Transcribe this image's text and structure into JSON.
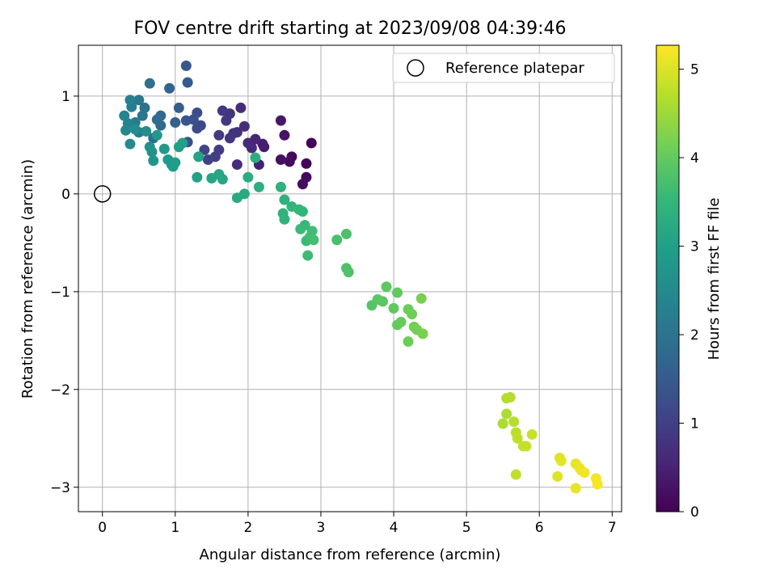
{
  "chart_data": {
    "type": "scatter",
    "title": "FOV centre drift starting at 2023/09/08 04:39:46",
    "xlabel": "Angular distance from reference (arcmin)",
    "ylabel": "Rotation from reference (arcmin)",
    "xlim": [
      -0.33,
      7.13
    ],
    "ylim": [
      -3.25,
      1.52
    ],
    "xticks": [
      0,
      1,
      2,
      3,
      4,
      5,
      6,
      7
    ],
    "xtick_labels": [
      "0",
      "1",
      "2",
      "3",
      "4",
      "5",
      "6",
      "7"
    ],
    "yticks": [
      1,
      0,
      -1,
      -2,
      -3
    ],
    "ytick_labels": [
      "1",
      "0",
      "−1",
      "−2",
      "−3"
    ],
    "grid": true,
    "legend": {
      "position": "top-right",
      "entries": [
        "Reference platepar"
      ]
    },
    "reference_point": {
      "x": 0,
      "y": 0,
      "label": "Reference platepar",
      "marker": "open-circle"
    },
    "colorbar": {
      "label": "Hours from first FF file",
      "min": 0,
      "max": 5.27,
      "ticks": [
        0,
        1,
        2,
        3,
        4,
        5
      ],
      "tick_labels": [
        "0",
        "1",
        "2",
        "3",
        "4",
        "5"
      ],
      "colormap": "viridis",
      "colors": [
        "#440154",
        "#482878",
        "#3e4989",
        "#31688e",
        "#26828e",
        "#1f9e89",
        "#35b779",
        "#6ece58",
        "#b5de2b",
        "#fde725"
      ]
    },
    "points": [
      [
        2.87,
        0.52,
        0.05
      ],
      [
        2.8,
        0.31,
        0.08
      ],
      [
        2.8,
        0.17,
        0.1
      ],
      [
        2.6,
        0.38,
        0.12
      ],
      [
        2.57,
        0.33,
        0.15
      ],
      [
        2.75,
        0.1,
        0.18
      ],
      [
        2.45,
        0.35,
        0.22
      ],
      [
        2.5,
        0.6,
        0.3
      ],
      [
        2.45,
        0.75,
        0.35
      ],
      [
        2.22,
        0.48,
        0.4
      ],
      [
        2.2,
        0.51,
        0.45
      ],
      [
        2.15,
        0.3,
        0.5
      ],
      [
        2.1,
        0.56,
        0.55
      ],
      [
        2.0,
        0.52,
        0.6
      ],
      [
        2.05,
        0.47,
        0.62
      ],
      [
        1.9,
        0.88,
        0.65
      ],
      [
        1.85,
        0.3,
        0.68
      ],
      [
        1.95,
        0.69,
        0.7
      ],
      [
        1.85,
        0.63,
        0.75
      ],
      [
        1.8,
        0.62,
        0.78
      ],
      [
        1.75,
        0.82,
        0.8
      ],
      [
        1.75,
        0.57,
        0.82
      ],
      [
        1.7,
        0.75,
        0.85
      ],
      [
        1.65,
        0.85,
        0.88
      ],
      [
        1.6,
        0.6,
        0.9
      ],
      [
        1.6,
        0.45,
        0.95
      ],
      [
        1.55,
        0.38,
        1.0
      ],
      [
        1.45,
        0.35,
        1.05
      ],
      [
        1.4,
        0.45,
        1.1
      ],
      [
        1.35,
        0.7,
        1.15
      ],
      [
        1.3,
        0.67,
        1.2
      ],
      [
        1.3,
        0.83,
        1.25
      ],
      [
        1.25,
        0.76,
        1.3
      ],
      [
        1.17,
        0.53,
        1.35
      ],
      [
        1.15,
        0.75,
        1.4
      ],
      [
        1.15,
        1.31,
        1.45
      ],
      [
        1.17,
        1.14,
        1.5
      ],
      [
        1.05,
        0.88,
        1.55
      ],
      [
        1.0,
        0.73,
        1.6
      ],
      [
        0.92,
        1.08,
        1.7
      ],
      [
        0.8,
        0.8,
        1.75
      ],
      [
        0.8,
        0.7,
        1.8
      ],
      [
        0.75,
        0.76,
        1.85
      ],
      [
        0.7,
        0.57,
        1.9
      ],
      [
        0.65,
        1.13,
        1.95
      ],
      [
        0.58,
        0.88,
        2.0
      ],
      [
        0.55,
        0.8,
        2.05
      ],
      [
        0.5,
        0.96,
        2.1
      ],
      [
        0.5,
        0.63,
        2.15
      ],
      [
        0.45,
        0.73,
        2.2
      ],
      [
        0.4,
        0.89,
        2.25
      ],
      [
        0.38,
        0.96,
        2.3
      ],
      [
        0.35,
        0.72,
        2.35
      ],
      [
        0.3,
        0.8,
        2.4
      ],
      [
        0.32,
        0.65,
        2.45
      ],
      [
        0.38,
        0.51,
        2.5
      ],
      [
        0.45,
        0.66,
        2.55
      ],
      [
        0.6,
        0.64,
        2.6
      ],
      [
        0.65,
        0.48,
        2.65
      ],
      [
        0.68,
        0.43,
        2.7
      ],
      [
        0.7,
        0.34,
        2.75
      ],
      [
        0.75,
        0.6,
        2.8
      ],
      [
        0.85,
        0.46,
        2.82
      ],
      [
        0.9,
        0.35,
        2.85
      ],
      [
        0.95,
        0.3,
        2.87
      ],
      [
        0.97,
        0.28,
        2.9
      ],
      [
        1.0,
        0.32,
        2.92
      ],
      [
        1.05,
        0.48,
        2.95
      ],
      [
        1.1,
        0.52,
        2.97
      ],
      [
        1.3,
        0.17,
        3.0
      ],
      [
        1.32,
        0.38,
        3.05
      ],
      [
        1.5,
        0.16,
        3.1
      ],
      [
        1.6,
        0.2,
        3.12
      ],
      [
        1.65,
        0.15,
        3.15
      ],
      [
        1.85,
        -0.04,
        3.2
      ],
      [
        1.95,
        0.0,
        3.22
      ],
      [
        2.0,
        0.17,
        3.25
      ],
      [
        2.1,
        0.37,
        3.28
      ],
      [
        2.15,
        0.07,
        3.3
      ],
      [
        2.45,
        0.07,
        3.35
      ],
      [
        2.5,
        -0.06,
        3.38
      ],
      [
        2.48,
        -0.2,
        3.4
      ],
      [
        2.5,
        -0.26,
        3.42
      ],
      [
        2.6,
        -0.13,
        3.45
      ],
      [
        2.7,
        -0.16,
        3.48
      ],
      [
        2.75,
        -0.18,
        3.5
      ],
      [
        2.78,
        -0.32,
        3.52
      ],
      [
        2.72,
        -0.36,
        3.55
      ],
      [
        2.8,
        -0.48,
        3.58
      ],
      [
        2.82,
        -0.63,
        3.6
      ],
      [
        2.85,
        -0.44,
        3.62
      ],
      [
        2.88,
        -0.38,
        3.65
      ],
      [
        2.9,
        -0.47,
        3.68
      ],
      [
        3.22,
        -0.47,
        3.72
      ],
      [
        3.35,
        -0.41,
        3.75
      ],
      [
        3.35,
        -0.76,
        3.78
      ],
      [
        3.38,
        -0.8,
        3.8
      ],
      [
        3.7,
        -1.14,
        3.85
      ],
      [
        3.78,
        -1.08,
        3.88
      ],
      [
        3.85,
        -1.1,
        3.9
      ],
      [
        3.9,
        -0.95,
        3.92
      ],
      [
        4.0,
        -1.17,
        3.95
      ],
      [
        4.05,
        -1.01,
        3.97
      ],
      [
        4.05,
        -1.34,
        4.0
      ],
      [
        4.1,
        -1.31,
        4.02
      ],
      [
        4.2,
        -1.18,
        4.05
      ],
      [
        4.2,
        -1.51,
        4.08
      ],
      [
        4.25,
        -1.23,
        4.1
      ],
      [
        4.28,
        -1.36,
        4.12
      ],
      [
        4.32,
        -1.39,
        4.15
      ],
      [
        4.38,
        -1.07,
        4.18
      ],
      [
        4.4,
        -1.43,
        4.2
      ],
      [
        5.5,
        -2.35,
        4.6
      ],
      [
        5.55,
        -2.25,
        4.62
      ],
      [
        5.55,
        -2.09,
        4.65
      ],
      [
        5.6,
        -2.08,
        4.67
      ],
      [
        5.65,
        -2.33,
        4.7
      ],
      [
        5.68,
        -2.44,
        4.72
      ],
      [
        5.7,
        -2.5,
        4.75
      ],
      [
        5.68,
        -2.87,
        4.77
      ],
      [
        5.78,
        -2.58,
        4.8
      ],
      [
        5.82,
        -2.58,
        4.82
      ],
      [
        5.9,
        -2.46,
        4.85
      ],
      [
        6.25,
        -2.89,
        5.0
      ],
      [
        6.28,
        -2.7,
        5.02
      ],
      [
        6.3,
        -2.73,
        5.05
      ],
      [
        6.5,
        -2.76,
        5.08
      ],
      [
        6.5,
        -3.01,
        5.1
      ],
      [
        6.55,
        -2.8,
        5.12
      ],
      [
        6.58,
        -2.83,
        5.15
      ],
      [
        6.62,
        -2.85,
        5.17
      ],
      [
        6.78,
        -2.91,
        5.2
      ],
      [
        6.8,
        -2.97,
        5.22
      ]
    ]
  }
}
